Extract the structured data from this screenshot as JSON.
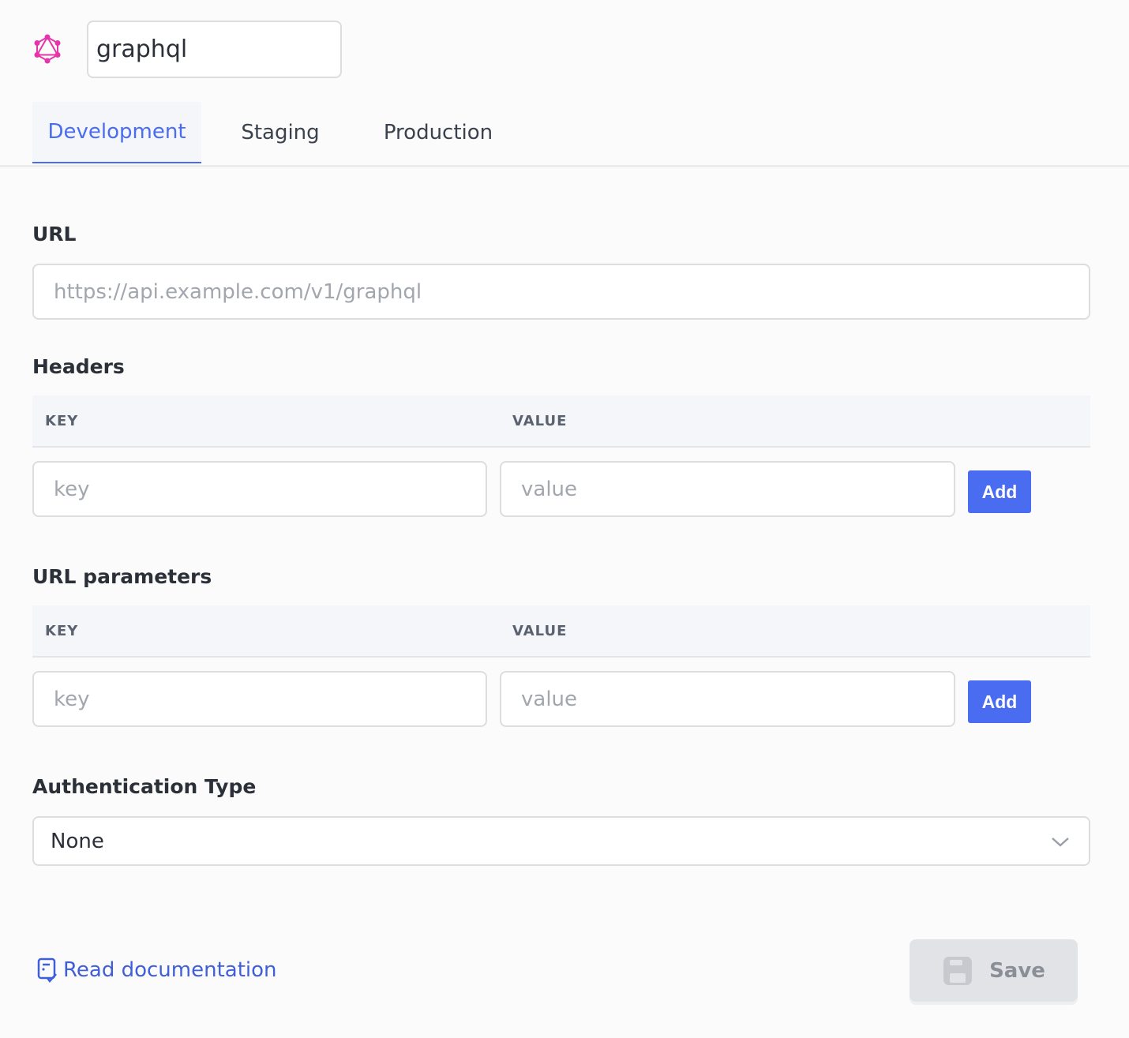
{
  "header": {
    "icon": "graphql-logo-icon",
    "name_value": "graphql"
  },
  "tabs": [
    {
      "label": "Development",
      "active": true
    },
    {
      "label": "Staging"
    },
    {
      "label": "Production"
    }
  ],
  "url": {
    "label": "URL",
    "placeholder": "https://api.example.com/v1/graphql"
  },
  "headers": {
    "label": "Headers",
    "col_key": "KEY",
    "col_value": "VALUE",
    "key_placeholder": "key",
    "value_placeholder": "value",
    "add_label": "Add"
  },
  "url_params": {
    "label": "URL parameters",
    "col_key": "KEY",
    "col_value": "VALUE",
    "key_placeholder": "key",
    "value_placeholder": "value",
    "add_label": "Add"
  },
  "auth": {
    "label": "Authentication Type",
    "selected": "None"
  },
  "footer": {
    "docs_label": "Read documentation",
    "save_label": "Save"
  },
  "colors": {
    "accent": "#4a6cf0",
    "logo": "#e535ab",
    "disabled": "#e1e3e6"
  }
}
